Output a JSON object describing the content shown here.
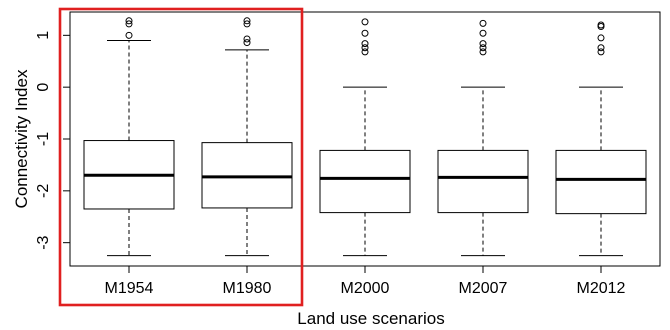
{
  "chart_data": {
    "type": "box",
    "xlabel": "Land use scenarios",
    "ylabel": "Connectivity Index",
    "ylim": [
      -3.45,
      1.45
    ],
    "yticks": [
      "-3",
      "-2",
      "-1",
      "0",
      "1"
    ],
    "ytick_values": [
      -3,
      -2,
      -1,
      0,
      1
    ],
    "grid": false,
    "categories": [
      "M1954",
      "M1980",
      "M2000",
      "M2007",
      "M2012"
    ],
    "boxes": [
      {
        "category": "M1954",
        "whisker_low": -3.25,
        "q1": -2.35,
        "median": -1.7,
        "q3": -1.03,
        "whisker_high": 0.9,
        "outliers": [
          1.0,
          1.22,
          1.28
        ]
      },
      {
        "category": "M1980",
        "whisker_low": -3.25,
        "q1": -2.33,
        "median": -1.73,
        "q3": -1.07,
        "whisker_high": 0.72,
        "outliers": [
          0.86,
          0.93,
          1.22,
          1.28
        ]
      },
      {
        "category": "M2000",
        "whisker_low": -3.25,
        "q1": -2.42,
        "median": -1.76,
        "q3": -1.22,
        "whisker_high": 0.0,
        "outliers": [
          0.68,
          0.76,
          0.84,
          1.04,
          1.26
        ]
      },
      {
        "category": "M2007",
        "whisker_low": -3.25,
        "q1": -2.42,
        "median": -1.74,
        "q3": -1.22,
        "whisker_high": 0.0,
        "outliers": [
          0.68,
          0.76,
          0.84,
          1.04,
          1.23
        ]
      },
      {
        "category": "M2012",
        "whisker_low": -3.25,
        "q1": -2.44,
        "median": -1.78,
        "q3": -1.22,
        "whisker_high": 0.0,
        "outliers": [
          0.68,
          0.76,
          0.95,
          1.17,
          1.2
        ]
      }
    ],
    "highlight": {
      "categories": [
        "M1954",
        "M1980"
      ],
      "color": "#e02020"
    }
  }
}
